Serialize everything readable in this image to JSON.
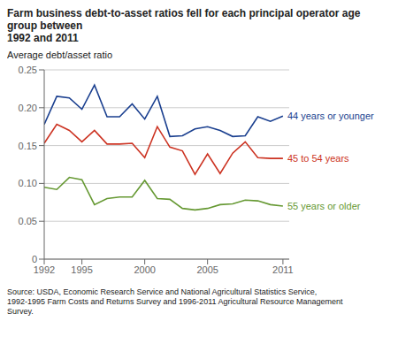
{
  "chart_data": {
    "type": "line",
    "title": "Farm business debt-to-asset ratios fell for each principal operator age group between\n1992 and 2011",
    "ylabel": "Average debt/asset ratio",
    "annotations": [
      "Source: USDA, Economic Research Service and National Agricultural Statistics Service,\n1992-1995 Farm Costs and Returns Survey and 1996-2011 Agricultural Resource Management\nSurvey."
    ],
    "x": [
      1992,
      1993,
      1994,
      1995,
      1996,
      1997,
      1998,
      1999,
      2000,
      2001,
      2002,
      2003,
      2004,
      2005,
      2006,
      2007,
      2008,
      2009,
      2010,
      2011
    ],
    "series": [
      {
        "name": "44 years or younger",
        "color": "#1a3f8f",
        "values": [
          0.178,
          0.215,
          0.213,
          0.198,
          0.23,
          0.188,
          0.188,
          0.205,
          0.185,
          0.215,
          0.162,
          0.163,
          0.172,
          0.175,
          0.17,
          0.162,
          0.163,
          0.188,
          0.182,
          0.189
        ]
      },
      {
        "name": "45 to 54 years",
        "color": "#cc3322",
        "values": [
          0.153,
          0.178,
          0.17,
          0.155,
          0.17,
          0.152,
          0.152,
          0.153,
          0.134,
          0.175,
          0.148,
          0.143,
          0.112,
          0.139,
          0.113,
          0.14,
          0.155,
          0.134,
          0.133,
          0.133
        ]
      },
      {
        "name": "55 years or older",
        "color": "#669933",
        "values": [
          0.095,
          0.092,
          0.108,
          0.105,
          0.072,
          0.08,
          0.082,
          0.082,
          0.104,
          0.08,
          0.079,
          0.067,
          0.065,
          0.067,
          0.072,
          0.073,
          0.078,
          0.077,
          0.072,
          0.07
        ]
      }
    ],
    "xlim": [
      1992,
      2011.5
    ],
    "xticks": [
      1992,
      1995,
      2000,
      2005,
      2011
    ],
    "ylim": [
      0,
      0.25
    ],
    "yticks": [
      0,
      0.05,
      {
        "value": 0.1,
        "label": "0.10"
      },
      0.15,
      {
        "value": 0.2,
        "label": "0.20"
      },
      0.25
    ],
    "grid": true
  }
}
